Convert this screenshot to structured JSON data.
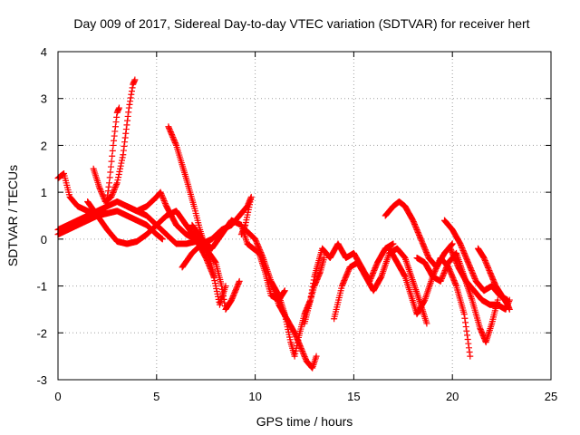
{
  "chart_data": {
    "type": "scatter",
    "title": "Day 009 of 2017, Sidereal Day-to-day VTEC variation (SDTVAR) for receiver hert",
    "xlabel": "GPS time / hours",
    "ylabel": "SDTVAR / TECUs",
    "xlim": [
      0,
      25
    ],
    "ylim": [
      -3,
      4
    ],
    "xticks": [
      0,
      5,
      10,
      15,
      20,
      25
    ],
    "yticks": [
      -3,
      -2,
      -1,
      0,
      1,
      2,
      3,
      4
    ],
    "xtick_labels": [
      "0",
      "5",
      "10",
      "15",
      "20",
      "25"
    ],
    "ytick_labels": [
      "-3",
      "-2",
      "-1",
      "0",
      "1",
      "2",
      "3",
      "4"
    ],
    "grid": true,
    "marker": "+",
    "color": "#ff0000",
    "series": [
      {
        "name": "s1",
        "points": [
          [
            0.0,
            1.3
          ],
          [
            0.3,
            1.4
          ],
          [
            0.6,
            0.9
          ],
          [
            1.0,
            0.7
          ],
          [
            1.5,
            0.6
          ],
          [
            2.0,
            0.5
          ],
          [
            2.5,
            0.55
          ],
          [
            3.0,
            0.6
          ],
          [
            3.5,
            0.5
          ],
          [
            4.0,
            0.4
          ],
          [
            4.5,
            0.3
          ],
          [
            5.0,
            0.1
          ],
          [
            5.3,
            0.0
          ]
        ]
      },
      {
        "name": "s2",
        "points": [
          [
            0.0,
            0.2
          ],
          [
            0.5,
            0.3
          ],
          [
            1.0,
            0.4
          ],
          [
            1.5,
            0.5
          ],
          [
            2.0,
            0.6
          ],
          [
            2.5,
            0.7
          ],
          [
            3.0,
            0.8
          ],
          [
            3.5,
            0.7
          ],
          [
            4.0,
            0.6
          ],
          [
            4.5,
            0.5
          ],
          [
            5.0,
            0.3
          ],
          [
            5.5,
            0.1
          ],
          [
            6.0,
            -0.1
          ],
          [
            6.5,
            -0.1
          ],
          [
            7.0,
            -0.05
          ]
        ]
      },
      {
        "name": "s3",
        "points": [
          [
            0.0,
            0.1
          ],
          [
            0.5,
            0.2
          ],
          [
            1.0,
            0.3
          ],
          [
            1.5,
            0.4
          ],
          [
            2.0,
            0.5
          ],
          [
            2.4,
            0.6
          ],
          [
            2.6,
            1.2
          ],
          [
            2.8,
            2.0
          ],
          [
            3.0,
            2.7
          ],
          [
            3.1,
            2.8
          ]
        ]
      },
      {
        "name": "s4",
        "points": [
          [
            1.8,
            1.5
          ],
          [
            2.1,
            1.1
          ],
          [
            2.4,
            0.8
          ],
          [
            2.7,
            0.9
          ],
          [
            3.0,
            1.2
          ],
          [
            3.3,
            1.8
          ],
          [
            3.6,
            2.8
          ],
          [
            3.8,
            3.3
          ],
          [
            3.9,
            3.4
          ]
        ]
      },
      {
        "name": "s5",
        "points": [
          [
            1.5,
            0.8
          ],
          [
            2.0,
            0.5
          ],
          [
            2.5,
            0.2
          ],
          [
            3.0,
            -0.05
          ],
          [
            3.5,
            -0.1
          ],
          [
            4.0,
            -0.05
          ],
          [
            4.5,
            0.1
          ],
          [
            5.0,
            0.3
          ],
          [
            5.5,
            0.5
          ],
          [
            6.0,
            0.6
          ],
          [
            6.5,
            0.3
          ],
          [
            7.0,
            0.0
          ],
          [
            7.5,
            -0.4
          ],
          [
            7.9,
            -0.8
          ]
        ]
      },
      {
        "name": "s6",
        "points": [
          [
            3.5,
            0.7
          ],
          [
            4.0,
            0.6
          ],
          [
            4.5,
            0.7
          ],
          [
            5.0,
            0.9
          ],
          [
            5.2,
            1.0
          ],
          [
            5.5,
            0.7
          ],
          [
            6.0,
            0.3
          ],
          [
            6.5,
            0.1
          ],
          [
            7.0,
            0.0
          ],
          [
            7.5,
            -0.2
          ],
          [
            8.0,
            -0.5
          ],
          [
            8.3,
            -1.0
          ],
          [
            8.5,
            -1.5
          ],
          [
            8.8,
            -1.3
          ],
          [
            9.2,
            -0.9
          ]
        ]
      },
      {
        "name": "s7",
        "points": [
          [
            5.6,
            2.4
          ],
          [
            6.0,
            2.0
          ],
          [
            6.5,
            1.3
          ],
          [
            6.9,
            0.7
          ],
          [
            7.2,
            0.2
          ],
          [
            7.5,
            -0.2
          ],
          [
            7.8,
            -0.6
          ],
          [
            8.0,
            -1.0
          ],
          [
            8.2,
            -1.4
          ],
          [
            8.5,
            -1.0
          ]
        ]
      },
      {
        "name": "s8",
        "points": [
          [
            6.3,
            -0.6
          ],
          [
            6.8,
            -0.3
          ],
          [
            7.3,
            -0.1
          ],
          [
            7.8,
            0.0
          ],
          [
            8.3,
            0.2
          ],
          [
            8.8,
            0.3
          ],
          [
            9.2,
            0.5
          ],
          [
            9.6,
            0.7
          ],
          [
            9.8,
            0.9
          ],
          [
            9.5,
            0.3
          ],
          [
            9.3,
            0.1
          ]
        ]
      },
      {
        "name": "s9",
        "points": [
          [
            6.8,
            0.3
          ],
          [
            7.3,
            0.0
          ],
          [
            7.8,
            -0.2
          ],
          [
            8.3,
            0.1
          ],
          [
            8.8,
            0.4
          ],
          [
            9.3,
            0.3
          ],
          [
            9.6,
            -0.1
          ],
          [
            9.9,
            -0.2
          ],
          [
            10.2,
            -0.3
          ],
          [
            10.5,
            -0.7
          ],
          [
            10.8,
            -1.2
          ],
          [
            11.2,
            -1.3
          ],
          [
            11.5,
            -1.1
          ]
        ]
      },
      {
        "name": "s10",
        "points": [
          [
            9.5,
            0.2
          ],
          [
            10.0,
            0.0
          ],
          [
            10.4,
            -0.4
          ],
          [
            10.8,
            -0.9
          ],
          [
            11.2,
            -1.4
          ],
          [
            11.6,
            -1.7
          ],
          [
            12.0,
            -2.0
          ],
          [
            12.3,
            -2.3
          ],
          [
            12.6,
            -2.6
          ],
          [
            12.9,
            -2.75
          ],
          [
            13.1,
            -2.5
          ]
        ]
      },
      {
        "name": "s11",
        "points": [
          [
            10.8,
            -0.9
          ],
          [
            11.2,
            -1.2
          ],
          [
            11.5,
            -1.6
          ],
          [
            11.8,
            -2.2
          ],
          [
            12.0,
            -2.5
          ],
          [
            12.2,
            -2.1
          ],
          [
            12.5,
            -1.6
          ],
          [
            12.8,
            -1.3
          ],
          [
            13.0,
            -1.0
          ],
          [
            13.3,
            -0.7
          ],
          [
            13.5,
            -0.4
          ]
        ]
      },
      {
        "name": "s12",
        "points": [
          [
            12.5,
            -1.8
          ],
          [
            12.8,
            -1.3
          ],
          [
            13.0,
            -0.8
          ],
          [
            13.4,
            -0.2
          ],
          [
            13.8,
            -0.4
          ],
          [
            14.2,
            -0.1
          ],
          [
            14.6,
            -0.4
          ],
          [
            15.0,
            -0.3
          ],
          [
            15.4,
            -0.6
          ],
          [
            15.8,
            -0.9
          ],
          [
            16.2,
            -0.5
          ],
          [
            16.6,
            -0.2
          ],
          [
            17.0,
            -0.1
          ]
        ]
      },
      {
        "name": "s13",
        "points": [
          [
            14.0,
            -1.7
          ],
          [
            14.4,
            -1.0
          ],
          [
            14.8,
            -0.6
          ],
          [
            15.2,
            -0.5
          ],
          [
            15.6,
            -0.8
          ],
          [
            16.0,
            -1.1
          ],
          [
            16.4,
            -0.8
          ],
          [
            16.8,
            -0.3
          ],
          [
            17.2,
            -0.2
          ],
          [
            17.6,
            -0.4
          ],
          [
            18.0,
            -0.9
          ],
          [
            18.4,
            -1.4
          ],
          [
            18.7,
            -1.8
          ]
        ]
      },
      {
        "name": "s14",
        "points": [
          [
            16.6,
            0.5
          ],
          [
            17.0,
            0.7
          ],
          [
            17.3,
            0.8
          ],
          [
            17.6,
            0.7
          ],
          [
            18.0,
            0.4
          ],
          [
            18.4,
            0.0
          ],
          [
            18.8,
            -0.4
          ],
          [
            19.2,
            -0.6
          ],
          [
            19.6,
            -0.3
          ],
          [
            20.0,
            -0.1
          ]
        ]
      },
      {
        "name": "s15",
        "points": [
          [
            16.8,
            -0.2
          ],
          [
            17.2,
            -0.5
          ],
          [
            17.6,
            -0.8
          ],
          [
            17.9,
            -1.2
          ],
          [
            18.2,
            -1.6
          ],
          [
            18.6,
            -1.3
          ],
          [
            19.0,
            -0.8
          ],
          [
            19.4,
            -0.4
          ],
          [
            19.8,
            -0.6
          ],
          [
            20.2,
            -1.0
          ],
          [
            20.6,
            -1.6
          ],
          [
            20.9,
            -2.5
          ]
        ]
      },
      {
        "name": "s16",
        "points": [
          [
            18.2,
            -0.4
          ],
          [
            18.6,
            -0.5
          ],
          [
            19.0,
            -0.8
          ],
          [
            19.4,
            -0.9
          ],
          [
            19.8,
            -0.5
          ],
          [
            20.2,
            -0.3
          ],
          [
            20.6,
            -0.8
          ],
          [
            21.0,
            -1.3
          ],
          [
            21.4,
            -1.9
          ],
          [
            21.7,
            -2.2
          ],
          [
            22.0,
            -1.8
          ],
          [
            22.3,
            -1.3
          ]
        ]
      },
      {
        "name": "s17",
        "points": [
          [
            19.6,
            0.4
          ],
          [
            20.0,
            0.2
          ],
          [
            20.4,
            -0.1
          ],
          [
            20.8,
            -0.5
          ],
          [
            21.2,
            -0.9
          ],
          [
            21.6,
            -1.1
          ],
          [
            22.0,
            -1.0
          ],
          [
            22.4,
            -1.2
          ],
          [
            22.8,
            -1.3
          ]
        ]
      },
      {
        "name": "s18",
        "points": [
          [
            19.9,
            -0.2
          ],
          [
            20.3,
            -0.6
          ],
          [
            20.7,
            -0.9
          ],
          [
            21.1,
            -1.1
          ],
          [
            21.5,
            -1.3
          ],
          [
            21.9,
            -1.4
          ],
          [
            22.3,
            -1.4
          ],
          [
            22.7,
            -1.5
          ],
          [
            22.9,
            -1.3
          ]
        ]
      },
      {
        "name": "s19",
        "points": [
          [
            21.3,
            -0.2
          ],
          [
            21.6,
            -0.4
          ],
          [
            21.9,
            -0.7
          ],
          [
            22.2,
            -1.0
          ],
          [
            22.5,
            -1.2
          ],
          [
            22.8,
            -1.4
          ],
          [
            22.9,
            -1.5
          ]
        ]
      }
    ]
  }
}
